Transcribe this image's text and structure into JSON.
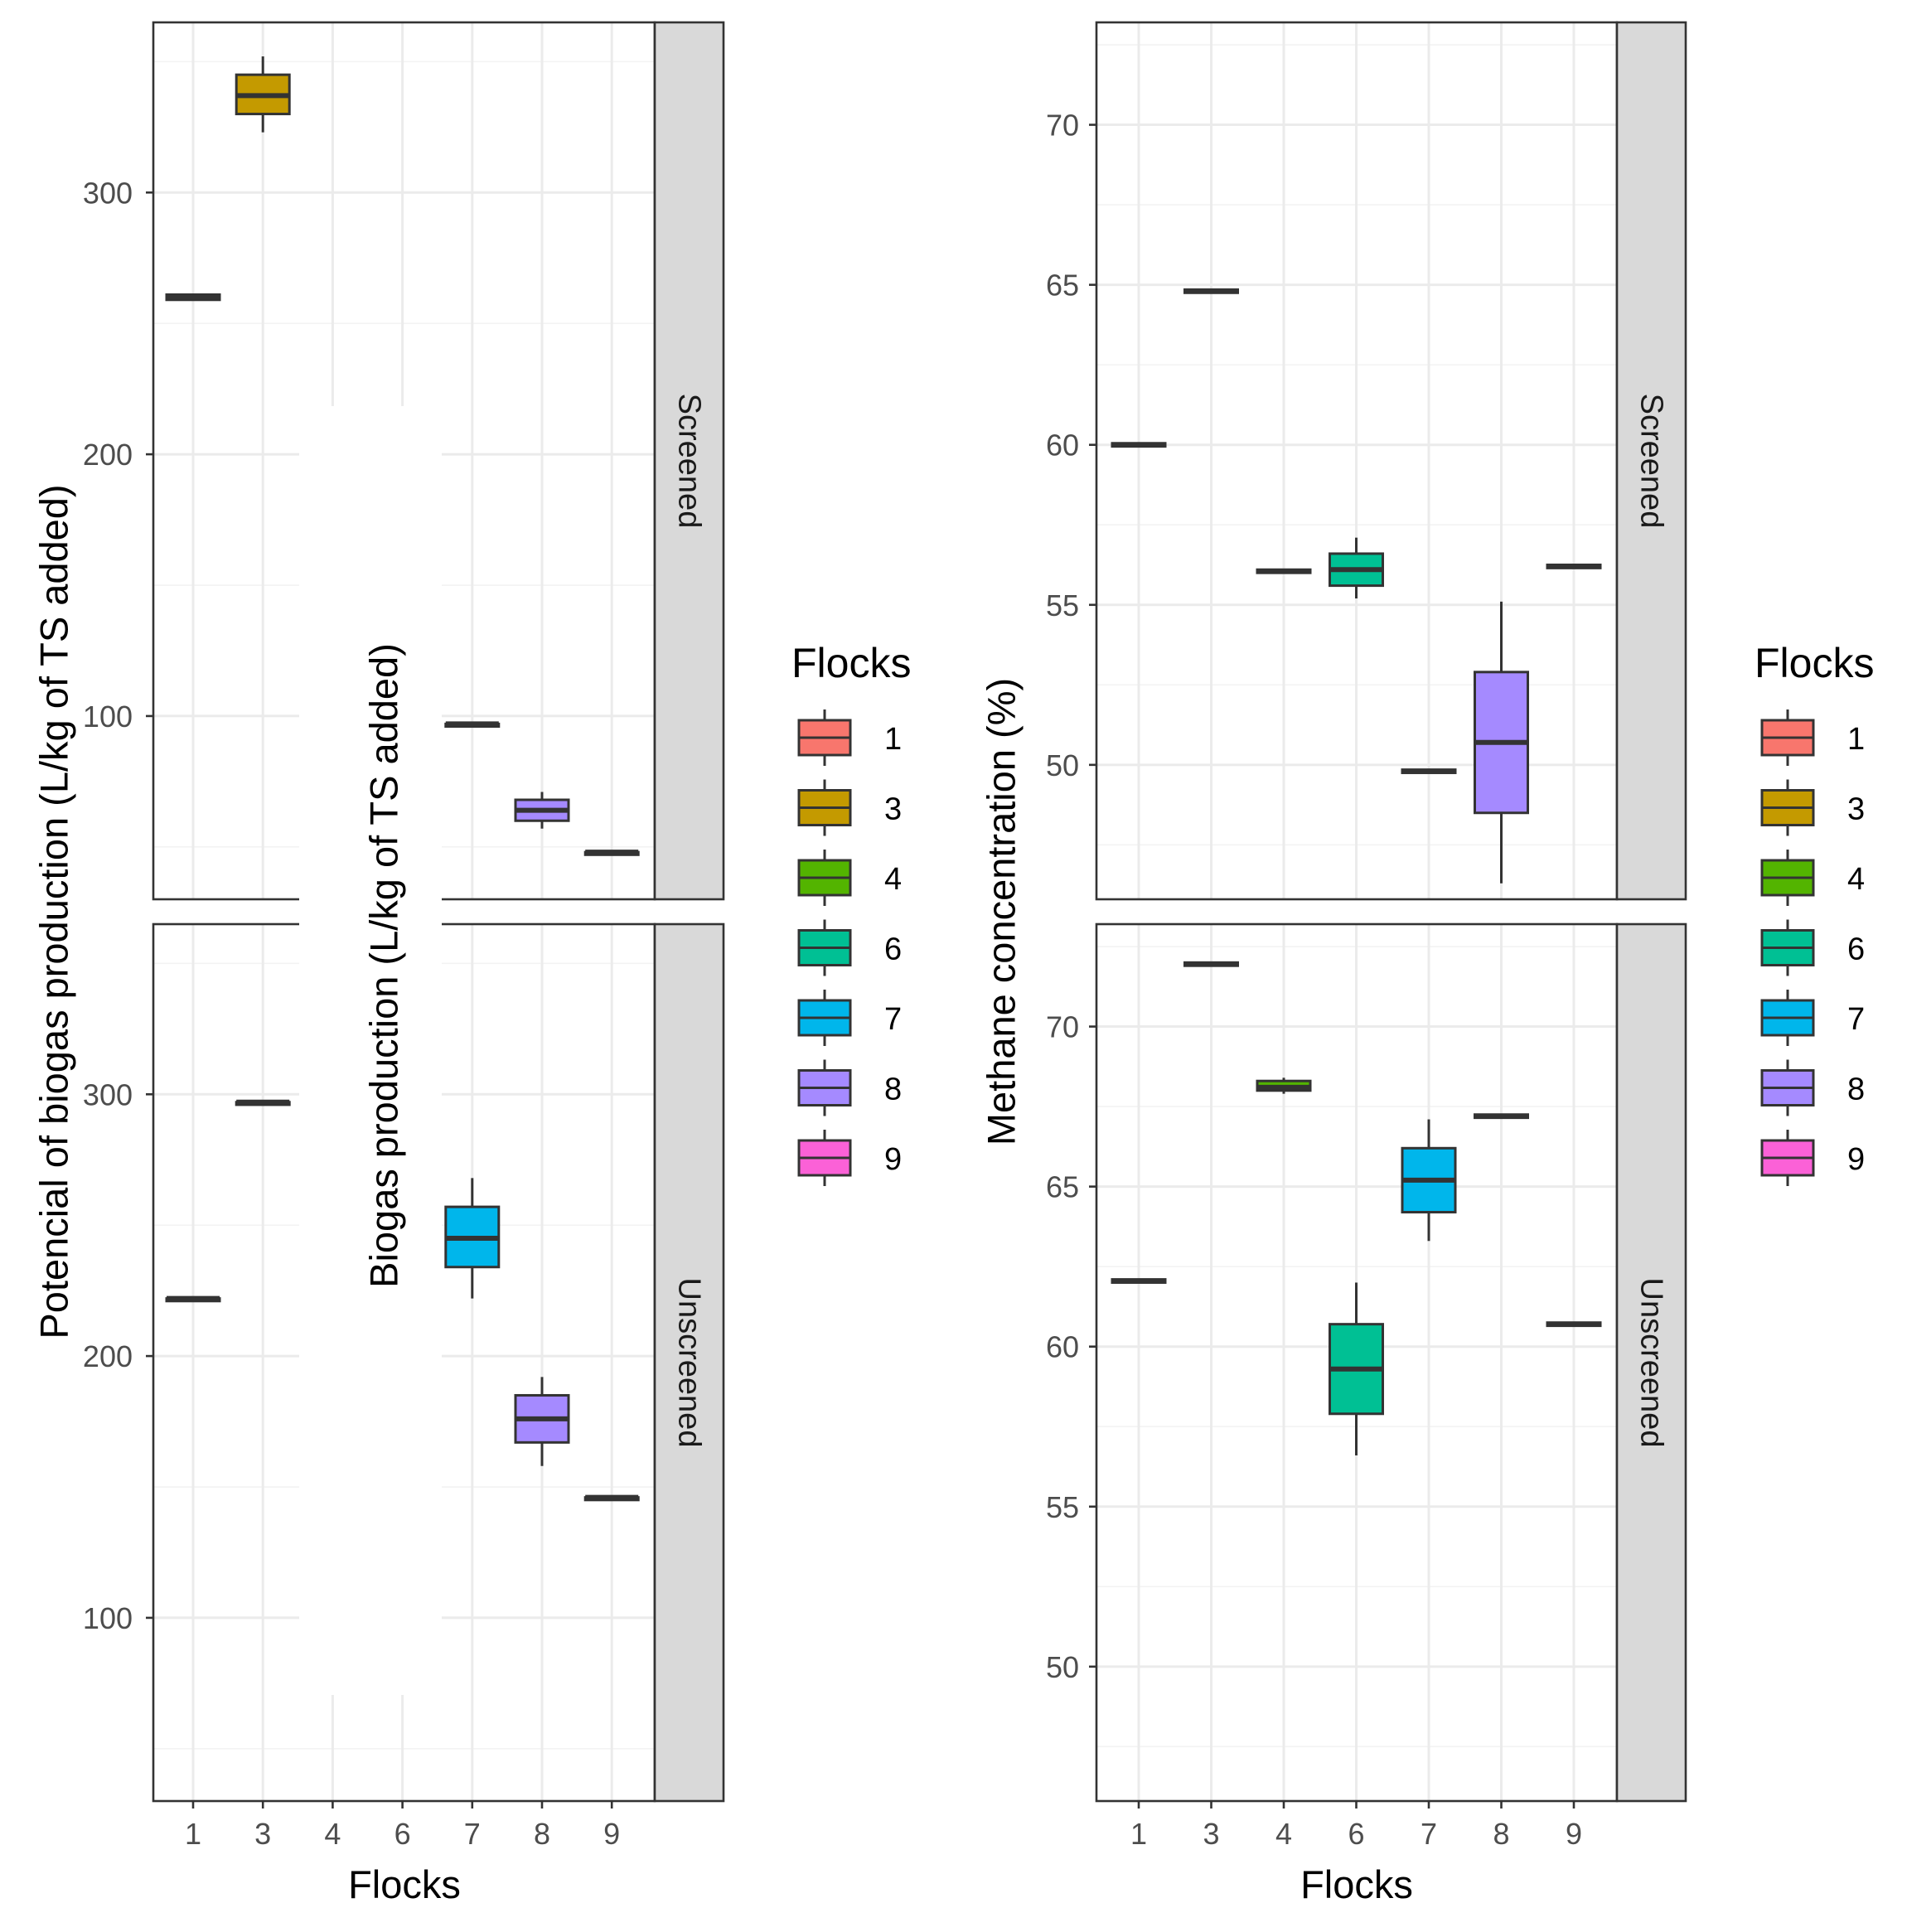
{
  "colors": {
    "flocks": {
      "1": "#F8766D",
      "3": "#C49A00",
      "4": "#53B400",
      "6": "#00C094",
      "7": "#00B6EB",
      "8": "#A58AFF",
      "9": "#FB61D7"
    },
    "strip": "#D9D9D9",
    "frame": "#333333",
    "grid": "#EBEBEB"
  },
  "chart_data": [
    {
      "type": "box",
      "title": "",
      "xlabel": "Flocks",
      "ylabel": "Potencial of biogas production (L/kg of TS added)",
      "overlay_label": "Biogas production (L/kg of TS added)",
      "categories": [
        "1",
        "3",
        "4",
        "6",
        "7",
        "8",
        "9"
      ],
      "ylim": [
        30,
        365
      ],
      "yticks": [
        100,
        200,
        300
      ],
      "legend": {
        "title": "Flocks",
        "entries": [
          "1",
          "3",
          "4",
          "6",
          "7",
          "8",
          "9"
        ],
        "position": "right"
      },
      "facets": [
        {
          "label": "Screened",
          "boxes": [
            {
              "flock": "1",
              "min": 259,
              "q1": 259,
              "median": 260,
              "q3": 261,
              "max": 261
            },
            {
              "flock": "3",
              "min": 323,
              "q1": 330,
              "median": 337,
              "q3": 345,
              "max": 352
            },
            {
              "flock": "7",
              "min": 96,
              "q1": 96,
              "median": 97,
              "q3": 97,
              "max": 97
            },
            {
              "flock": "8",
              "min": 57,
              "q1": 60,
              "median": 64,
              "q3": 68,
              "max": 71
            },
            {
              "flock": "9",
              "min": 47,
              "q1": 47,
              "median": 48,
              "q3": 48,
              "max": 48
            }
          ]
        },
        {
          "label": "Unscreened",
          "boxes": [
            {
              "flock": "1",
              "min": 221,
              "q1": 221,
              "median": 222,
              "q3": 222,
              "max": 222
            },
            {
              "flock": "3",
              "min": 296,
              "q1": 296,
              "median": 297,
              "q3": 297,
              "max": 297
            },
            {
              "flock": "7",
              "min": 222,
              "q1": 234,
              "median": 245,
              "q3": 257,
              "max": 268
            },
            {
              "flock": "8",
              "min": 158,
              "q1": 167,
              "median": 176,
              "q3": 185,
              "max": 192
            },
            {
              "flock": "9",
              "min": 145,
              "q1": 145,
              "median": 146,
              "q3": 146,
              "max": 146
            }
          ]
        }
      ]
    },
    {
      "type": "box",
      "title": "",
      "xlabel": "Flocks",
      "ylabel": "Methane concentration (%)",
      "categories": [
        "1",
        "3",
        "4",
        "6",
        "7",
        "8",
        "9"
      ],
      "ylim": [
        45.8,
        73.2
      ],
      "yticks": [
        50,
        55,
        60,
        65,
        70
      ],
      "legend": {
        "title": "Flocks",
        "entries": [
          "1",
          "3",
          "4",
          "6",
          "7",
          "8",
          "9"
        ],
        "position": "right"
      },
      "facets": [
        {
          "label": "Screened",
          "boxes": [
            {
              "flock": "1",
              "min": 59.95,
              "q1": 59.95,
              "median": 60.0,
              "q3": 60.05,
              "max": 60.05
            },
            {
              "flock": "3",
              "min": 64.75,
              "q1": 64.75,
              "median": 64.8,
              "q3": 64.85,
              "max": 64.85
            },
            {
              "flock": "4",
              "min": 56.0,
              "q1": 56.0,
              "median": 56.05,
              "q3": 56.1,
              "max": 56.1
            },
            {
              "flock": "6",
              "min": 55.2,
              "q1": 55.6,
              "median": 56.1,
              "q3": 56.6,
              "max": 57.1
            },
            {
              "flock": "7",
              "min": 49.75,
              "q1": 49.75,
              "median": 49.8,
              "q3": 49.85,
              "max": 49.85
            },
            {
              "flock": "8",
              "min": 46.3,
              "q1": 48.5,
              "median": 50.7,
              "q3": 52.9,
              "max": 55.1
            },
            {
              "flock": "9",
              "min": 56.15,
              "q1": 56.15,
              "median": 56.2,
              "q3": 56.25,
              "max": 56.25
            }
          ]
        },
        {
          "label": "Unscreened",
          "boxes": [
            {
              "flock": "1",
              "min": 62.0,
              "q1": 62.0,
              "median": 62.05,
              "q3": 62.1,
              "max": 62.1
            },
            {
              "flock": "3",
              "min": 71.9,
              "q1": 71.9,
              "median": 71.95,
              "q3": 72.0,
              "max": 72.0
            },
            {
              "flock": "4",
              "min": 67.9,
              "q1": 68.0,
              "median": 68.1,
              "q3": 68.3,
              "max": 68.4
            },
            {
              "flock": "6",
              "min": 56.6,
              "q1": 57.9,
              "median": 59.3,
              "q3": 60.7,
              "max": 62.0
            },
            {
              "flock": "7",
              "min": 63.3,
              "q1": 64.2,
              "median": 65.2,
              "q3": 66.2,
              "max": 67.1
            },
            {
              "flock": "8",
              "min": 67.15,
              "q1": 67.15,
              "median": 67.2,
              "q3": 67.25,
              "max": 67.25
            },
            {
              "flock": "9",
              "min": 60.65,
              "q1": 60.65,
              "median": 60.7,
              "q3": 60.75,
              "max": 60.75
            }
          ]
        }
      ]
    }
  ]
}
